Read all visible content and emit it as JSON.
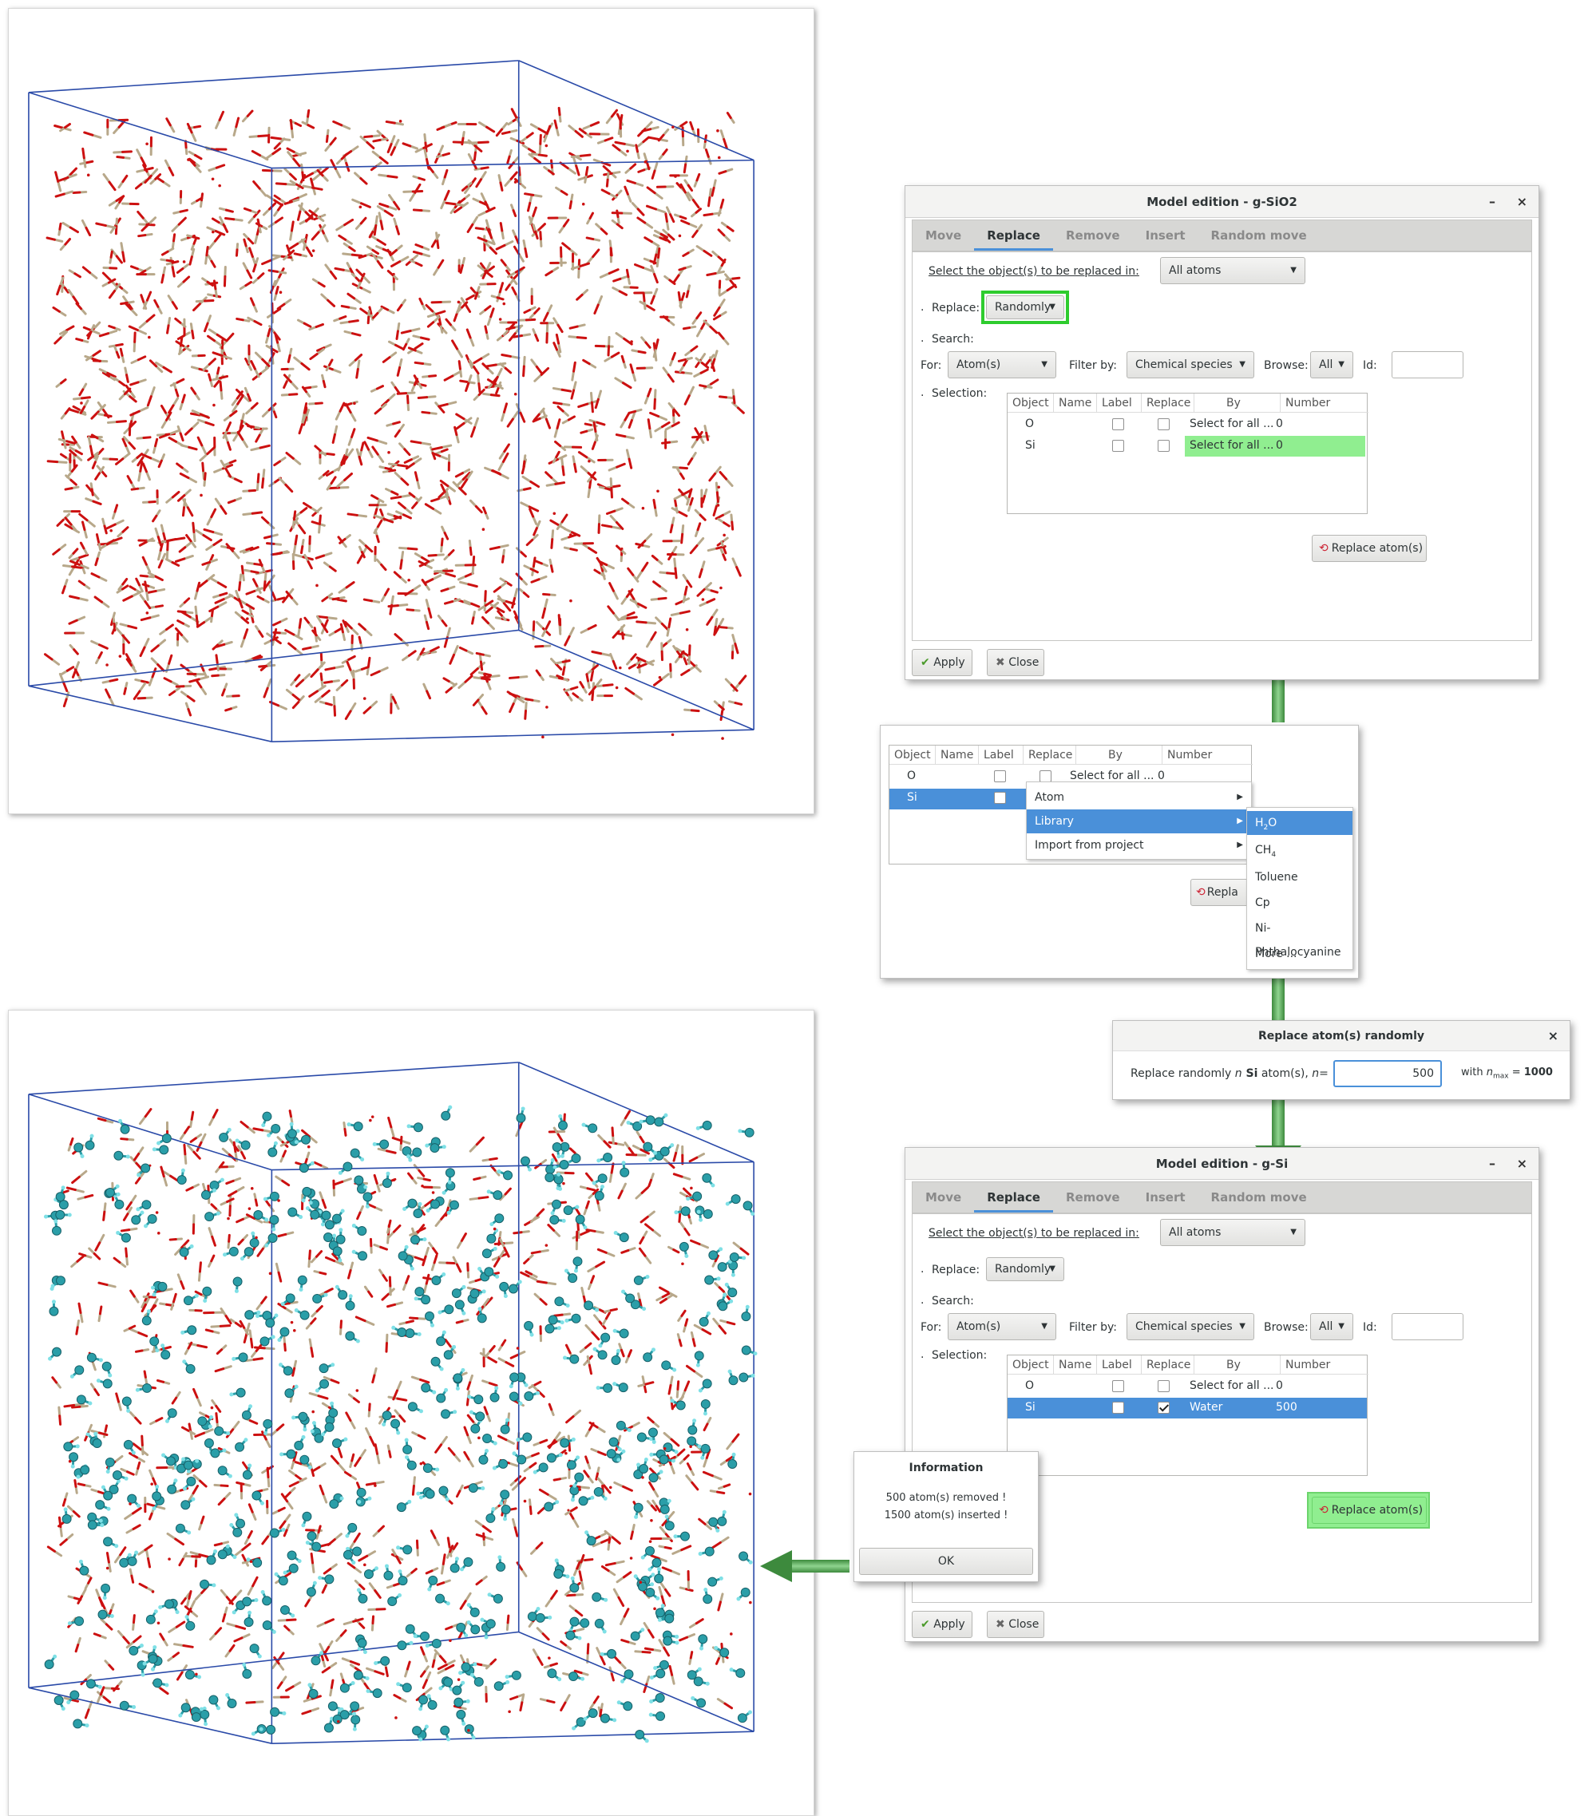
{
  "dialog1": {
    "title": "Model edition - g-SiO2",
    "minimize": "–",
    "close": "×",
    "tabs": [
      "Move",
      "Replace",
      "Remove",
      "Insert",
      "Random move"
    ],
    "select_label": "Select the object(s) to be replaced in:",
    "select_value": "All atoms",
    "replace_label": "Replace:",
    "replace_value": "Randomly",
    "search_label": "Search:",
    "for_label": "For:",
    "for_value": "Atom(s)",
    "filter_label": "Filter by:",
    "filter_value": "Chemical species",
    "browse_label": "Browse:",
    "browse_value": "All",
    "id_label": "Id:",
    "selection_label": "Selection:",
    "columns": [
      "Object",
      "Name",
      "Label",
      "Replace",
      "By",
      "Number"
    ],
    "rows": [
      {
        "object": "O",
        "by": "Select for all ...",
        "number": "0"
      },
      {
        "object": "Si",
        "by": "Select for all ...",
        "number": "0"
      }
    ],
    "replace_btn": "Replace atom(s)",
    "apply": "Apply",
    "close_btn": "Close",
    "bullet": "."
  },
  "popup": {
    "columns": [
      "Object",
      "Name",
      "Label",
      "Replace",
      "By",
      "Number"
    ],
    "rows": [
      {
        "object": "O",
        "by": "Select for all ...",
        "number": "0"
      },
      {
        "object": "Si"
      }
    ],
    "menu": [
      "Atom",
      "Library",
      "Import from project"
    ],
    "submenu": [
      "H2O",
      "CH4",
      "Toluene",
      "Cp",
      "Ni-Phthalocyanine",
      "More ..."
    ],
    "replace_btn_partial": "Repla"
  },
  "random_dialog": {
    "title": "Replace atom(s) randomly",
    "prompt_a": "Replace randomly ",
    "prompt_n": "n",
    "prompt_b": " Si",
    "prompt_c": " atom(s), ",
    "prompt_n2": "n",
    "prompt_eq": "=",
    "value": "500",
    "with_text": "with ",
    "nmax_n": "n",
    "nmax_sub": "max",
    "nmax_eq": " = ",
    "nmax_val": "1000",
    "close": "×"
  },
  "dialog2": {
    "title": "Model edition - g-Si",
    "minimize": "–",
    "close": "×",
    "tabs": [
      "Move",
      "Replace",
      "Remove",
      "Insert",
      "Random move"
    ],
    "select_label": "Select the object(s) to be replaced in:",
    "select_value": "All atoms",
    "replace_label": "Replace:",
    "replace_value": "Randomly",
    "search_label": "Search:",
    "for_label": "For:",
    "for_value": "Atom(s)",
    "filter_label": "Filter by:",
    "filter_value": "Chemical species",
    "browse_label": "Browse:",
    "browse_value": "All",
    "id_label": "Id:",
    "selection_label": "Selection:",
    "columns": [
      "Object",
      "Name",
      "Label",
      "Replace",
      "By",
      "Number"
    ],
    "rows": [
      {
        "object": "O",
        "by": "Select for all ...",
        "number": "0"
      },
      {
        "object": "Si",
        "by": "Water",
        "number": "500"
      }
    ],
    "replace_btn": "Replace atom(s)",
    "apply": "Apply",
    "close_btn": "Close"
  },
  "info": {
    "title": "Information",
    "line1": "500 atom(s) removed !",
    "line2": "1500 atom(s) inserted !",
    "ok": "OK"
  },
  "colors": {
    "oxygen": "#cc1010",
    "silicon": "#b8a88a",
    "water": "#2a9ea8",
    "box": "#2a4aa8",
    "highlight_green": "#90ee90",
    "outline_green": "#2ecc2e",
    "selection_blue": "#4a90d9"
  }
}
